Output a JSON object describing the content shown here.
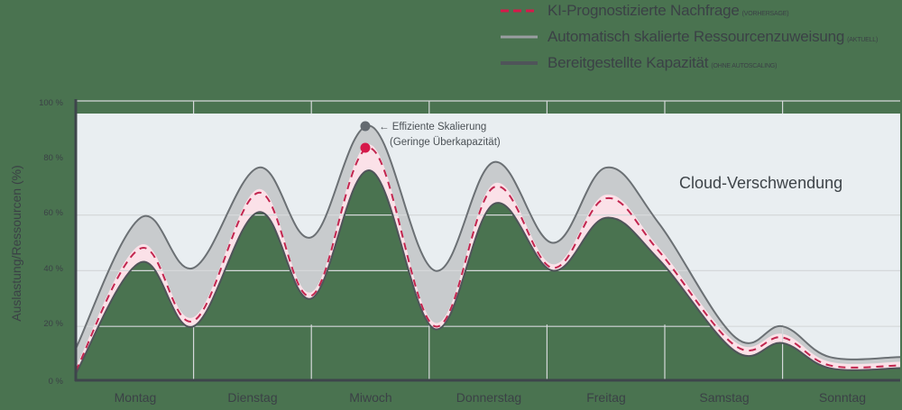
{
  "legend": {
    "items": [
      {
        "label": "KI-Prognostizierte Nachfrage",
        "note": "(Vorhersage)",
        "style": "dashed",
        "color": "#d6194a"
      },
      {
        "label": "Automatisch skalierte Ressourcenzuweisung",
        "note": "(Aktuell)",
        "style": "solid",
        "color": "#8e9295"
      },
      {
        "label": "Bereitgestellte Kapazität",
        "note": "(Ohne Autoscaling)",
        "style": "solid",
        "color": "#4f5459"
      }
    ]
  },
  "annotations": {
    "efficient_line1": "← Effiziente Skalierung",
    "efficient_line2": "(Geringe Überkapazität)",
    "waste_label": "Cloud-Verschwendung"
  },
  "colors": {
    "background": "#4a7350",
    "waste_area": "#e9eef1",
    "autoscale_band": "#c8cbcd",
    "forecast_band": "#fbe1e8",
    "forecast_line": "#c2264f",
    "forecast_dot": "#d6194a",
    "autoscale_line": "#6b7074",
    "capacity_line": "#4f5459",
    "gridline": "#d5d8da",
    "axis": "#3e454b"
  },
  "chart_data": {
    "type": "area",
    "title": "",
    "xlabel": "",
    "ylabel": "Auslastung/Ressourcen (%)",
    "ylim": [
      0,
      100
    ],
    "yticks": [
      "0 %",
      "20 %",
      "40 %",
      "60 %",
      "80 %",
      "100 %"
    ],
    "categories": [
      "Montag",
      "Dienstag",
      "Miwoch",
      "Donnerstag",
      "Freitag",
      "Samstag",
      "Sonntag"
    ],
    "grid": true,
    "legend_position": "top-right",
    "x": [
      0,
      0.55,
      1.0,
      1.55,
      2.0,
      2.5,
      3.05,
      3.55,
      4.05,
      4.5,
      4.95,
      5.6,
      6.0,
      6.4,
      7.0
    ],
    "series": [
      {
        "name": "Automatisch skalierte Ressourcenzuweisung (Aktuell)",
        "values": [
          12,
          59,
          41,
          77,
          52,
          92,
          40,
          79,
          50,
          77,
          57,
          16,
          20,
          9,
          9
        ]
      },
      {
        "name": "KI-Prognostizierte Nachfrage (Vorhersage)",
        "values": [
          4,
          48,
          22,
          68,
          31,
          84,
          20,
          70,
          41,
          66,
          47,
          13,
          16,
          6,
          6
        ]
      },
      {
        "name": "Bereitgestellte Kapazität (Ohne Autoscaling)",
        "values": [
          3,
          43,
          20,
          61,
          30,
          76,
          19,
          64,
          40,
          59,
          44,
          11,
          14,
          5,
          5
        ]
      }
    ],
    "annotations": [
      {
        "text": "Effiziente Skalierung (Geringe Überkapazität)",
        "x": 2.5,
        "y": 92
      },
      {
        "text": "Cloud-Verschwendung",
        "region": "area above autoscaled allocation"
      }
    ]
  }
}
